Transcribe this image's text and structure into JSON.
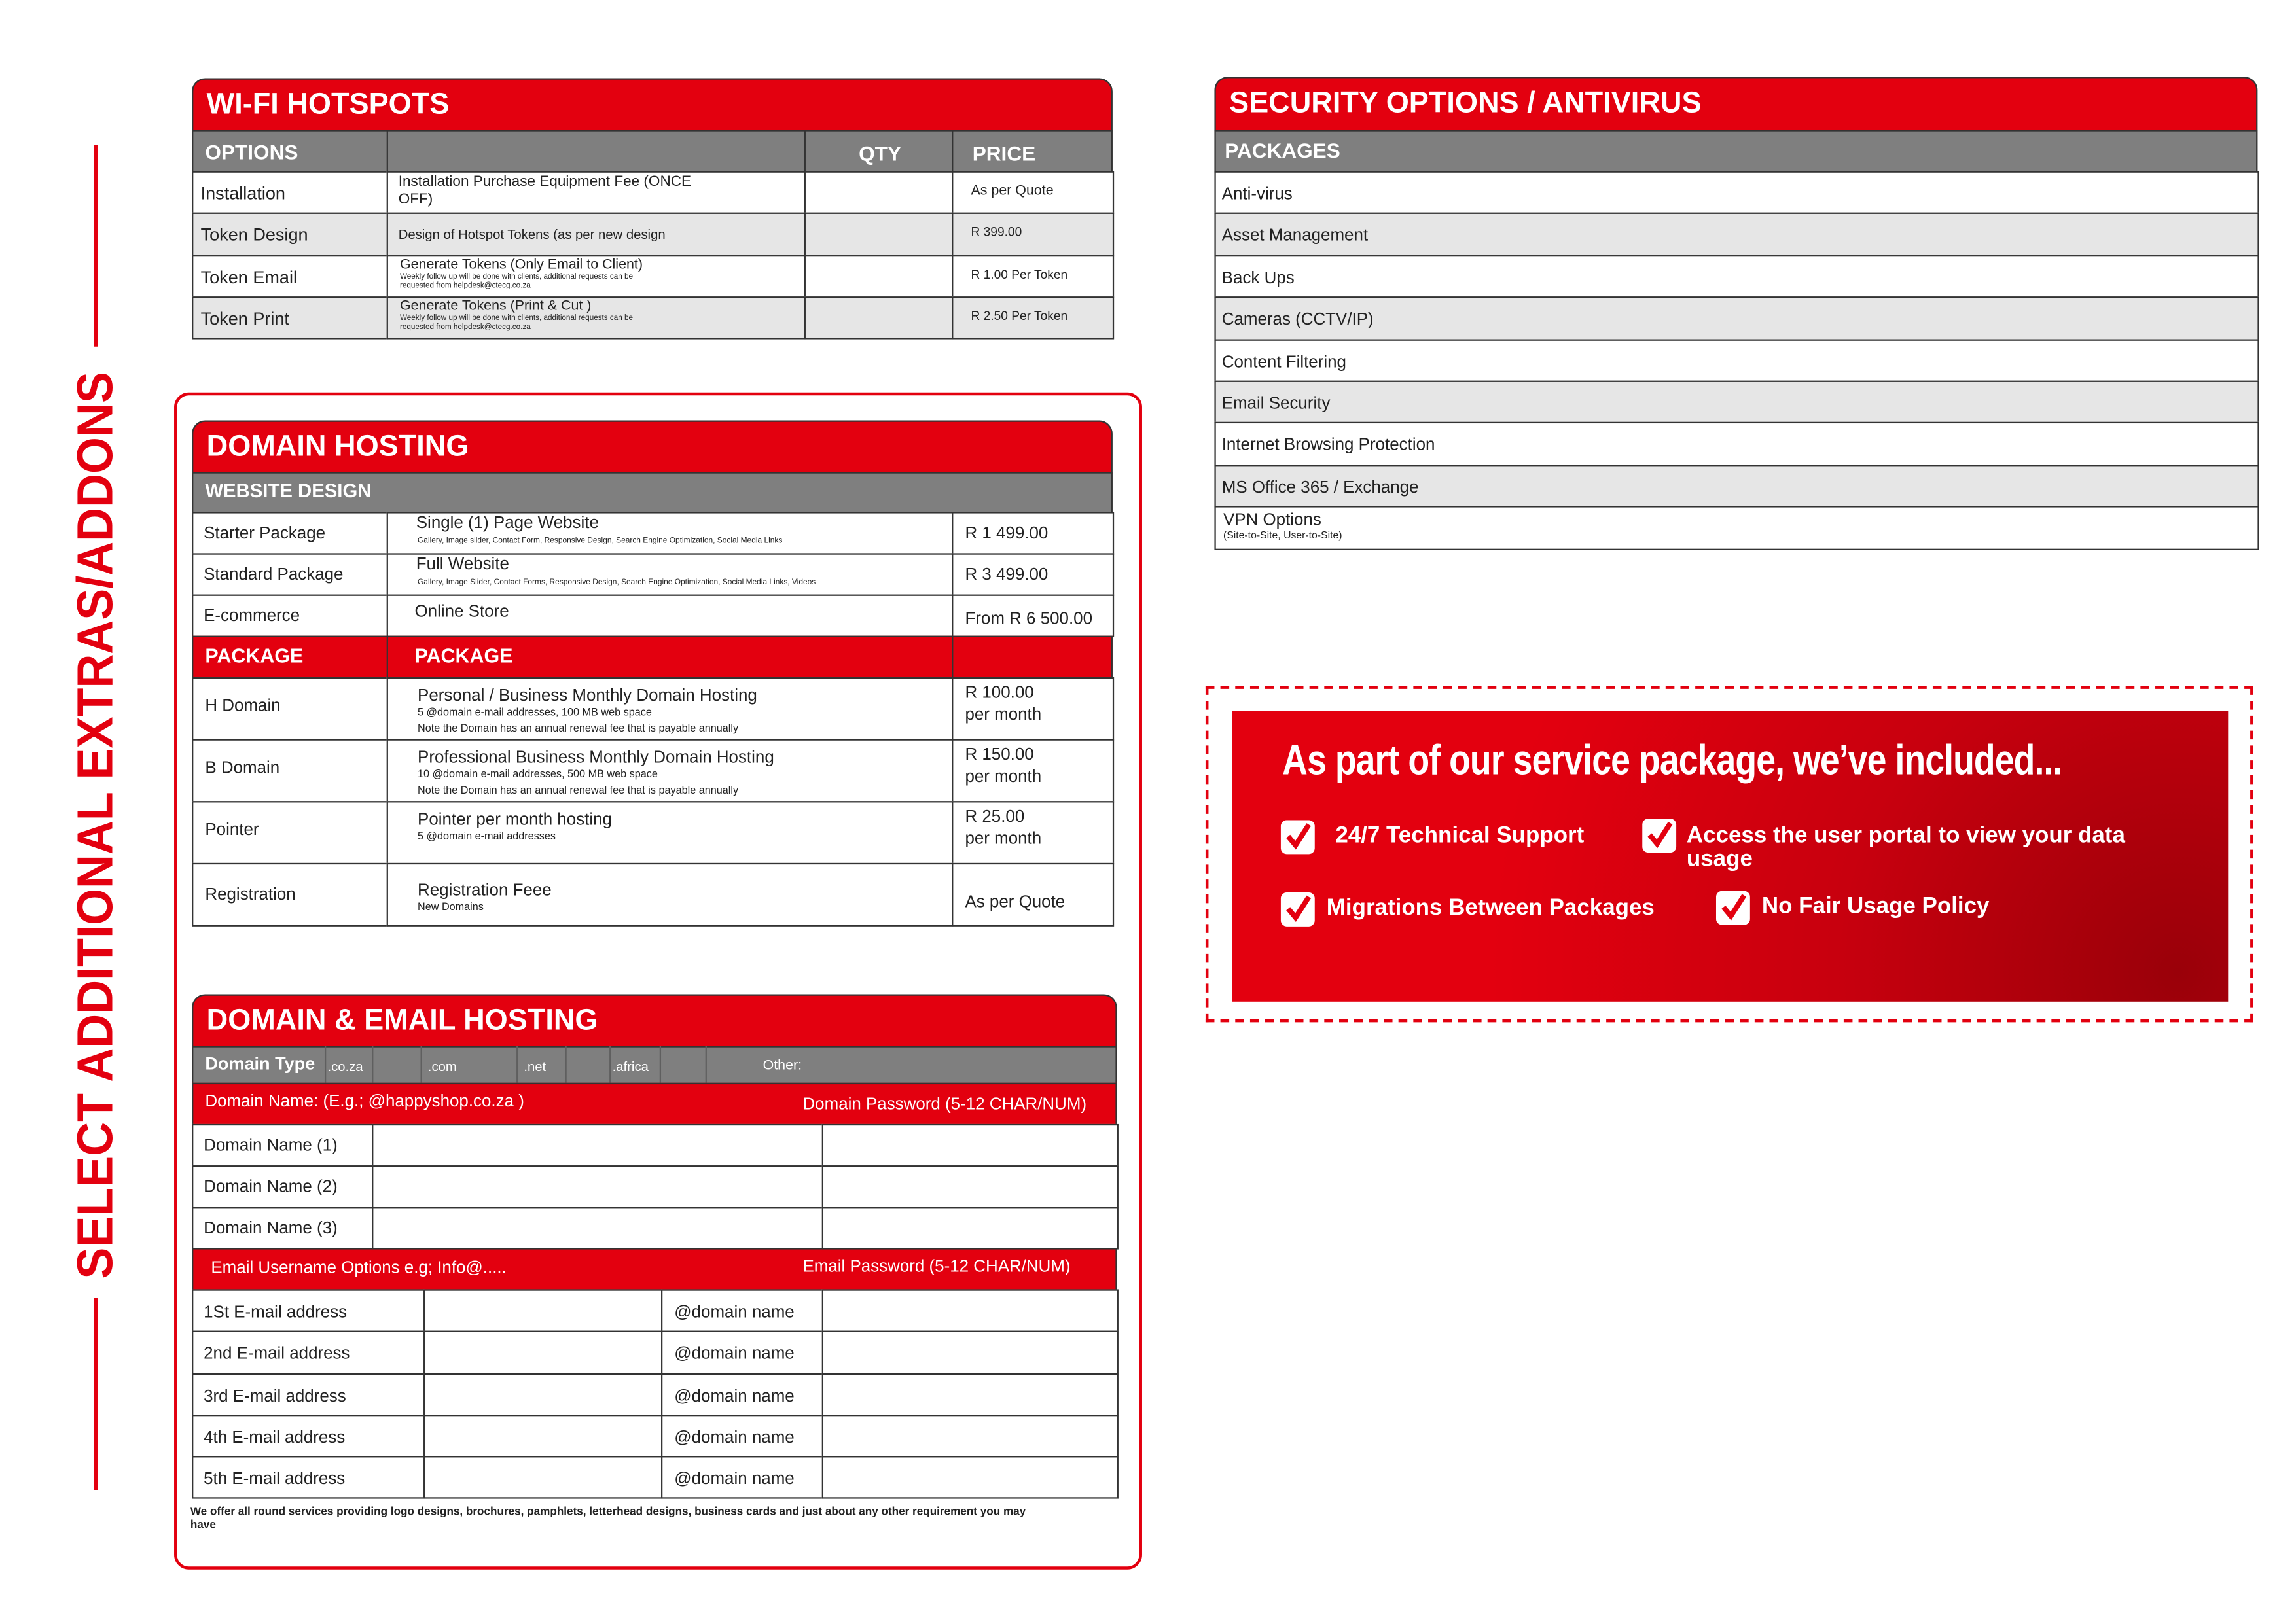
{
  "side_title": "SELECT ADDITIONAL EXTRAS/ADDONS",
  "wifi": {
    "title": "WI-FI HOTSPOTS",
    "headers": {
      "options": "OPTIONS",
      "qty": "QTY",
      "price": "PRICE"
    },
    "rows": [
      {
        "option": "Installation",
        "description": "Installation Purchase Equipment Fee (ONCE OFF)",
        "price": "As per Quote"
      },
      {
        "option": "Token Design",
        "description": "Design of Hotspot Tokens (as per new design",
        "price": "R 399.00"
      },
      {
        "option": "Token Email",
        "description": "Generate Tokens (Only Email to Client)",
        "note": "Weekly follow up will be done with clients, additional requests can be requested from helpdesk@ctecg.co.za",
        "price": "R 1.00 Per Token"
      },
      {
        "option": "Token Print",
        "description": "Generate Tokens (Print & Cut )",
        "note": "Weekly follow up will be done with clients, additional requests can be requested from helpdesk@ctecg.co.za",
        "price": "R 2.50 Per Token"
      }
    ]
  },
  "security": {
    "title": "SECURITY OPTIONS / ANTIVIRUS",
    "header": "PACKAGES",
    "rows": [
      {
        "label": "Anti-virus"
      },
      {
        "label": "Asset Management"
      },
      {
        "label": "Back Ups"
      },
      {
        "label": "Cameras (CCTV/IP)"
      },
      {
        "label": "Content Filtering"
      },
      {
        "label": "Email Security"
      },
      {
        "label": "Internet Browsing Protection"
      },
      {
        "label": "MS Office 365 / Exchange"
      },
      {
        "label": "VPN Options",
        "note": "(Site-to-Site, User-to-Site)"
      }
    ]
  },
  "domain_hosting": {
    "title": "DOMAIN HOSTING",
    "section": "WEBSITE DESIGN",
    "website_rows": [
      {
        "name": "Starter Package",
        "description": "Single (1) Page Website",
        "note": "Gallery, Image slider, Contact Form, Responsive Design, Search Engine Optimization, Social Media Links",
        "price": "R 1 499.00"
      },
      {
        "name": "Standard Package",
        "description": "Full Website",
        "note": "Gallery, Image Slider, Contact Forms, Responsive Design, Search Engine Optimization, Social Media Links, Videos",
        "price": "R 3 499.00"
      },
      {
        "name": "E-commerce",
        "description": "Online Store",
        "price": "From R 6 500.00"
      }
    ],
    "package_headers": [
      "PACKAGE",
      "PACKAGE"
    ],
    "package_rows": [
      {
        "name": "H Domain",
        "description": "Personal / Business Monthly Domain Hosting",
        "notes": [
          "5 @domain e-mail addresses, 100 MB web space",
          "Note the Domain has an annual renewal fee that is payable annually"
        ],
        "price": [
          "R 100.00",
          "per month"
        ]
      },
      {
        "name": "B Domain",
        "description": "Professional Business Monthly Domain Hosting",
        "notes": [
          "10 @domain e-mail addresses, 500 MB web space",
          "Note the Domain has an annual renewal fee that is payable annually"
        ],
        "price": [
          "R 150.00",
          "per month"
        ]
      },
      {
        "name": "Pointer",
        "description": "Pointer per month hosting",
        "notes": [
          "5 @domain e-mail addresses"
        ],
        "price": [
          "R 25.00",
          "per month"
        ]
      },
      {
        "name": "Registration",
        "description": "Registration Feee",
        "notes": [
          "New Domains"
        ],
        "price": [
          "As per Quote"
        ]
      }
    ]
  },
  "email_hosting": {
    "title": "DOMAIN & EMAIL HOSTING",
    "domain_type_label": "Domain Type",
    "domain_types": [
      ".co.za",
      ".com",
      ".net",
      ".africa"
    ],
    "other": "Other:",
    "domain_name_header": "Domain Name: (E.g.; @happyshop.co.za )",
    "domain_password_header": "Domain Password (5-12 CHAR/NUM)",
    "domain_rows": [
      "Domain Name (1)",
      "Domain Name (2)",
      "Domain Name (3)"
    ],
    "email_header": "Email Username Options e.g; Info@.....",
    "email_password_header": "Email Password (5-12 CHAR/NUM)",
    "email_rows": [
      {
        "label": "1St E-mail address",
        "suffix": "@domain name"
      },
      {
        "label": "2nd E-mail address",
        "suffix": "@domain name"
      },
      {
        "label": "3rd E-mail address",
        "suffix": "@domain name"
      },
      {
        "label": "4th E-mail address",
        "suffix": "@domain name"
      },
      {
        "label": "5th E-mail address",
        "suffix": "@domain name"
      }
    ],
    "footer_note": "We offer all round services providing logo designs, brochures, pamphlets, letterhead designs, business cards and just about any other requirement you may have"
  },
  "banner": {
    "title": "As part of our service package, we’ve included...",
    "items": [
      "24/7 Technical Support",
      "Access the user portal to view your data usage",
      "Migrations Between Packages",
      "No Fair Usage Policy"
    ]
  }
}
